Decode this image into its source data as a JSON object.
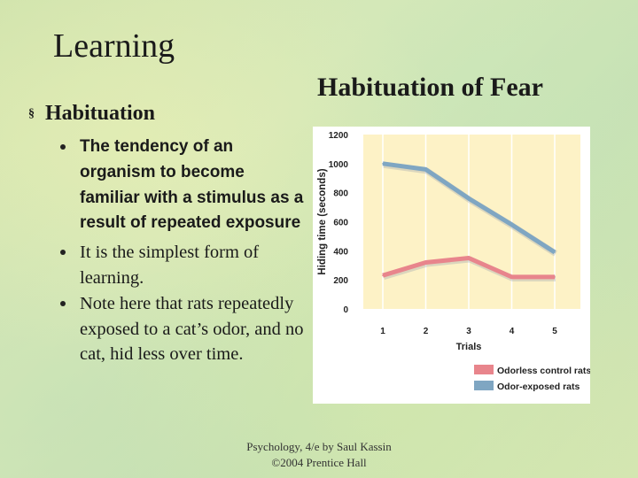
{
  "slide": {
    "title": "Learning",
    "chart_heading": "Habituation of Fear",
    "section": {
      "heading": "Habituation"
    },
    "bullets": [
      "The tendency of an organism to become familiar with a stimulus as a result of repeated exposure",
      "It is the simplest form of learning.",
      "Note here that rats repeatedly exposed to a cat’s odor, and no cat, hid less over time."
    ],
    "footer": {
      "line1": "Psychology, 4/e by Saul Kassin",
      "line2": "©2004 Prentice Hall"
    }
  },
  "chart_data": {
    "type": "line",
    "categories": [
      "1",
      "2",
      "3",
      "4",
      "5"
    ],
    "xlabel": "Trials",
    "ylabel": "Hiding time (seconds)",
    "ylim": [
      0,
      1200
    ],
    "yticks": [
      "1200",
      "1000",
      "800",
      "600",
      "400",
      "200",
      "0"
    ],
    "grid": false,
    "legend": "bottom-right",
    "series": [
      {
        "name": "Odorless control rats",
        "color": "#e8858c",
        "values": [
          230,
          320,
          350,
          220,
          220
        ]
      },
      {
        "name": "Odor-exposed rats",
        "color": "#7fa6c2",
        "values": [
          1000,
          960,
          760,
          580,
          390
        ]
      }
    ]
  }
}
